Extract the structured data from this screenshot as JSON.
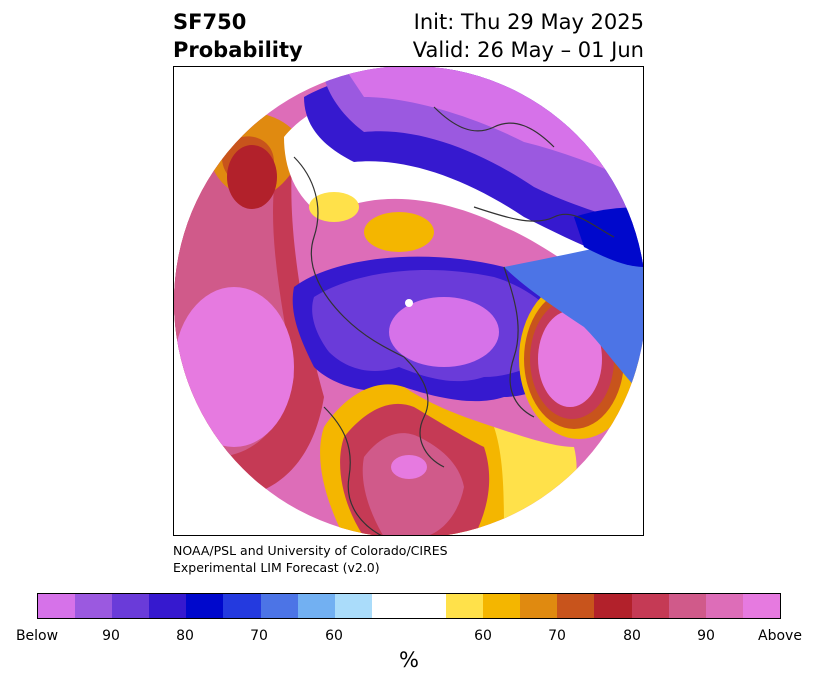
{
  "title": {
    "left_line1": "SF750",
    "left_line2": "Probability",
    "right_line1": "Init: Thu 29 May 2025",
    "right_line2": "Valid: 26 May – 01 Jun"
  },
  "credit": {
    "line1": "NOAA/PSL and University of Colorado/CIRES",
    "line2": "Experimental LIM Forecast (v2.0)"
  },
  "colorbar": {
    "colors": [
      "#d672e9",
      "#9b59e0",
      "#6a3bd9",
      "#3619cf",
      "#0008cc",
      "#243adf",
      "#4c74e6",
      "#72b0f2",
      "#aadcfa",
      "#ffffff",
      "#ffe14a",
      "#f4b600",
      "#e08a10",
      "#c8541c",
      "#b2212b",
      "#c53a55",
      "#d05a8a",
      "#dd6db8",
      "#e67ae0"
    ],
    "tick_labels": [
      "Below",
      "90",
      "80",
      "70",
      "60",
      "60",
      "70",
      "80",
      "90",
      "Above"
    ],
    "unit_label": "%"
  },
  "map": {
    "projection": "north-polar-stereographic",
    "legend_colors": {
      "deep_below": "#d672e9",
      "below": "#3619cf",
      "neutral": "#ffffff",
      "above": "#c8541c",
      "deep_above": "#e67ae0"
    }
  }
}
